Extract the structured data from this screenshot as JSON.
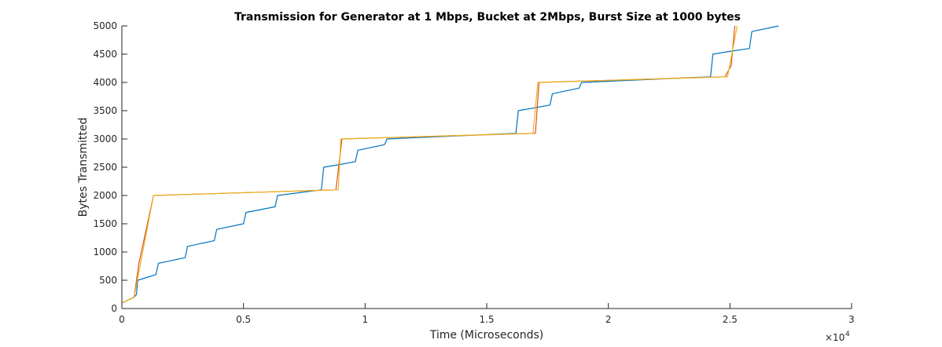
{
  "chart_data": {
    "type": "line",
    "title": "Transmission for Generator at 1 Mbps, Bucket at 2Mbps, Burst Size at 1000 bytes",
    "xlabel": "Time (Microseconds)",
    "ylabel": "Bytes Transmitted",
    "x_multiplier": {
      "base": "×10",
      "exponent": "4"
    },
    "xlim": [
      0,
      3
    ],
    "ylim": [
      0,
      5000
    ],
    "xticks": [
      0,
      0.5,
      1,
      1.5,
      2,
      2.5,
      3
    ],
    "xtick_labels": [
      "0",
      "0.5",
      "1",
      "1.5",
      "2",
      "2.5",
      "3"
    ],
    "yticks": [
      0,
      500,
      1000,
      1500,
      2000,
      2500,
      3000,
      3500,
      4000,
      4500,
      5000
    ],
    "ytick_labels": [
      "0",
      "500",
      "1000",
      "1500",
      "2000",
      "2500",
      "3000",
      "3500",
      "4000",
      "4500",
      "5000"
    ],
    "grid": false,
    "box": "open (bottom and left axes only)",
    "series": [
      {
        "color": "#0072BD",
        "x": [
          0,
          0.05,
          0.06,
          0.065,
          0.14,
          0.15,
          0.26,
          0.27,
          0.38,
          0.39,
          0.5,
          0.51,
          0.63,
          0.64,
          0.82,
          0.83,
          0.9,
          0.96,
          0.97,
          1.08,
          1.09,
          1.62,
          1.63,
          1.76,
          1.77,
          1.88,
          1.89,
          2.42,
          2.43,
          2.5,
          2.58,
          2.59,
          2.7
        ],
        "y": [
          100,
          200,
          250,
          500,
          600,
          800,
          900,
          1100,
          1200,
          1400,
          1500,
          1700,
          1800,
          2000,
          2100,
          2500,
          2550,
          2600,
          2800,
          2900,
          3000,
          3100,
          3500,
          3600,
          3800,
          3900,
          4000,
          4100,
          4500,
          4550,
          4600,
          4900,
          5000
        ]
      },
      {
        "color": "#D95319",
        "x": [
          0,
          0.05,
          0.07,
          0.12,
          0.13,
          0.88,
          0.905,
          1.7,
          1.715,
          2.48,
          2.505,
          2.52
        ],
        "y": [
          100,
          200,
          800,
          1800,
          2000,
          2100,
          3000,
          3100,
          4000,
          4100,
          4300,
          5000
        ]
      },
      {
        "color": "#EDB120",
        "x": [
          0,
          0.05,
          0.13,
          0.89,
          0.9,
          1.69,
          1.71,
          2.49,
          2.53
        ],
        "y": [
          100,
          200,
          2000,
          2100,
          3000,
          3100,
          4000,
          4100,
          5000
        ]
      }
    ]
  }
}
